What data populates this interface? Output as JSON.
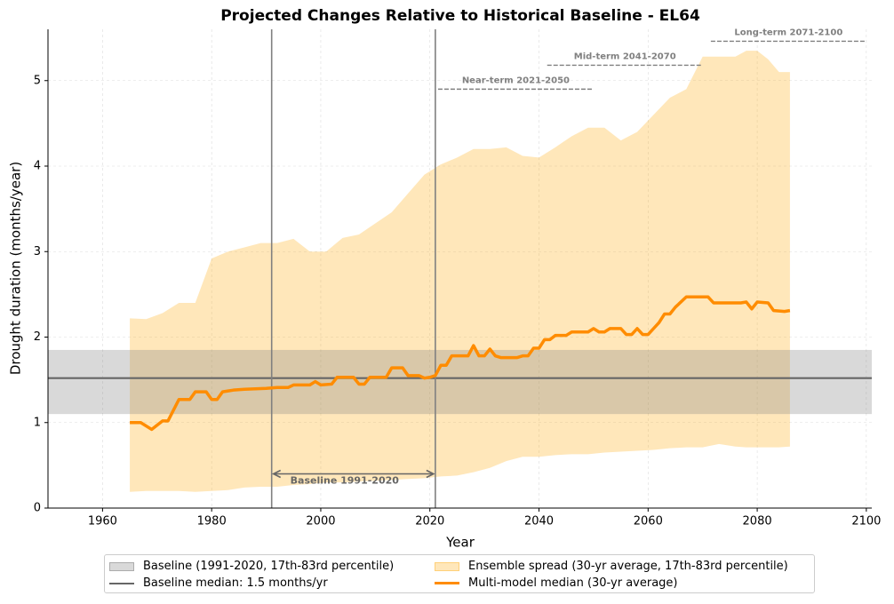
{
  "chart_data": {
    "type": "line",
    "title": "Projected Changes Relative to Historical Baseline - EL64",
    "xlabel": "Year",
    "ylabel": "Drought duration (months/year)",
    "xlim": [
      1950,
      2101
    ],
    "ylim": [
      0,
      5.6
    ],
    "xticks": [
      1960,
      1980,
      2000,
      2020,
      2040,
      2060,
      2080,
      2100
    ],
    "yticks": [
      0,
      1,
      2,
      3,
      4,
      5
    ],
    "grid": true,
    "legend": "lower center outside",
    "baseline_band": {
      "name": "Baseline (1991-2020, 17th-83rd percentile)",
      "color": "#808080",
      "low": 1.1,
      "high": 1.85
    },
    "baseline_median": {
      "name": "Baseline median: 1.5 months/yr",
      "color": "#666666",
      "value": 1.52
    },
    "band": {
      "name": "Ensemble spread (30-yr average, 17th-83rd percentile)",
      "color": "#ffa500",
      "x": [
        1965,
        1968,
        1971,
        1974,
        1977,
        1980,
        1983,
        1986,
        1989,
        1992,
        1995,
        1998,
        2001,
        2004,
        2007,
        2010,
        2013,
        2016,
        2019,
        2022,
        2025,
        2028,
        2031,
        2034,
        2037,
        2040,
        2043,
        2046,
        2049,
        2052,
        2055,
        2058,
        2061,
        2064,
        2067,
        2070,
        2073,
        2076,
        2078,
        2080,
        2082,
        2084,
        2086
      ],
      "high": [
        2.22,
        2.21,
        2.28,
        2.4,
        2.4,
        2.92,
        3.0,
        3.05,
        3.1,
        3.1,
        3.15,
        3.0,
        3.0,
        3.16,
        3.2,
        3.33,
        3.46,
        3.68,
        3.9,
        4.02,
        4.1,
        4.2,
        4.2,
        4.22,
        4.12,
        4.1,
        4.22,
        4.35,
        4.45,
        4.45,
        4.3,
        4.4,
        4.6,
        4.8,
        4.9,
        5.28,
        5.28,
        5.28,
        5.35,
        5.35,
        5.25,
        5.1,
        5.1
      ],
      "low": [
        0.19,
        0.2,
        0.2,
        0.2,
        0.19,
        0.2,
        0.21,
        0.24,
        0.25,
        0.25,
        0.27,
        0.28,
        0.3,
        0.3,
        0.31,
        0.32,
        0.33,
        0.34,
        0.35,
        0.37,
        0.38,
        0.42,
        0.47,
        0.55,
        0.6,
        0.6,
        0.62,
        0.63,
        0.63,
        0.65,
        0.66,
        0.67,
        0.68,
        0.7,
        0.71,
        0.71,
        0.75,
        0.72,
        0.71,
        0.71,
        0.71,
        0.71,
        0.72
      ]
    },
    "series": [
      {
        "name": "Multi-model median (30-yr average)",
        "color": "#ff8c00",
        "x": [
          1965,
          1967,
          1969,
          1971,
          1972,
          1974,
          1976,
          1977,
          1979,
          1980,
          1981,
          1982,
          1984,
          1986,
          1990,
          1992,
          1994,
          1995,
          1998,
          1999,
          2000,
          2002,
          2003,
          2006,
          2007,
          2008,
          2009,
          2012,
          2013,
          2015,
          2016,
          2018,
          2019,
          2020,
          2021,
          2022,
          2023,
          2024,
          2027,
          2028,
          2029,
          2030,
          2031,
          2032,
          2033,
          2036,
          2037,
          2038,
          2039,
          2040,
          2041,
          2042,
          2043,
          2045,
          2046,
          2049,
          2050,
          2051,
          2052,
          2053,
          2055,
          2056,
          2057,
          2058,
          2059,
          2060,
          2061,
          2062,
          2063,
          2064,
          2065,
          2067,
          2071,
          2072,
          2077,
          2078,
          2079,
          2080,
          2082,
          2083,
          2085,
          2086
        ],
        "values": [
          1.0,
          1.0,
          0.92,
          1.02,
          1.02,
          1.27,
          1.27,
          1.36,
          1.36,
          1.27,
          1.27,
          1.36,
          1.38,
          1.39,
          1.4,
          1.41,
          1.41,
          1.44,
          1.44,
          1.48,
          1.44,
          1.45,
          1.53,
          1.53,
          1.45,
          1.45,
          1.53,
          1.53,
          1.64,
          1.64,
          1.55,
          1.55,
          1.52,
          1.53,
          1.55,
          1.67,
          1.67,
          1.78,
          1.78,
          1.9,
          1.78,
          1.78,
          1.86,
          1.78,
          1.76,
          1.76,
          1.78,
          1.78,
          1.87,
          1.87,
          1.97,
          1.97,
          2.02,
          2.02,
          2.06,
          2.06,
          2.1,
          2.06,
          2.06,
          2.1,
          2.1,
          2.03,
          2.03,
          2.1,
          2.03,
          2.03,
          2.1,
          2.17,
          2.27,
          2.27,
          2.35,
          2.47,
          2.47,
          2.4,
          2.4,
          2.41,
          2.33,
          2.41,
          2.4,
          2.31,
          2.3,
          2.31
        ]
      }
    ],
    "vlines": {
      "color": "#808080",
      "x": [
        1991,
        2021
      ]
    },
    "baseline_arrow": {
      "label": "Baseline 1991-2020",
      "start": 1991,
      "end": 2021,
      "y": 0.4
    },
    "periods": [
      {
        "label": "Near-term 2021-2050",
        "start": 2021.5,
        "end": 2050,
        "y": 4.9
      },
      {
        "label": "Mid-term 2041-2070",
        "start": 2041.5,
        "end": 2070,
        "y": 5.18
      },
      {
        "label": "Long-term 2071-2100",
        "start": 2071.5,
        "end": 2100,
        "y": 5.46
      }
    ]
  }
}
